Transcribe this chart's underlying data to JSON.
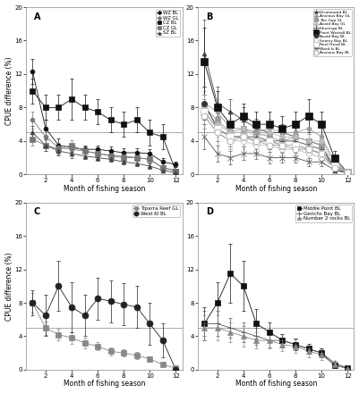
{
  "panel_A": {
    "title": "A",
    "series": [
      {
        "label": "WZ BL",
        "color": "#111111",
        "marker": "o",
        "markersize": 3.5,
        "mfc": "#111111",
        "x": [
          1,
          2,
          3,
          4,
          5,
          6,
          7,
          8,
          9,
          10,
          11,
          12
        ],
        "y": [
          12.3,
          5.5,
          3.5,
          3.2,
          3.0,
          3.0,
          2.8,
          2.6,
          2.6,
          2.5,
          1.5,
          1.2
        ],
        "yerr": [
          1.5,
          1.0,
          0.8,
          0.5,
          0.5,
          0.5,
          0.5,
          0.5,
          0.5,
          0.5,
          0.5,
          0.3
        ]
      },
      {
        "label": "WZ GL",
        "color": "#777777",
        "marker": "o",
        "markersize": 3.5,
        "mfc": "#777777",
        "x": [
          1,
          2,
          3,
          4,
          5,
          6,
          7,
          8,
          9,
          10,
          11,
          12
        ],
        "y": [
          6.5,
          4.5,
          3.2,
          3.0,
          2.8,
          2.5,
          2.3,
          2.2,
          2.0,
          1.8,
          0.8,
          0.5
        ],
        "yerr": [
          1.0,
          0.8,
          0.6,
          0.5,
          0.5,
          0.4,
          0.4,
          0.4,
          0.4,
          0.4,
          0.3,
          0.2
        ]
      },
      {
        "label": "CZ BL",
        "color": "#111111",
        "marker": "s",
        "markersize": 4.5,
        "mfc": "#111111",
        "x": [
          1,
          2,
          3,
          4,
          5,
          6,
          7,
          8,
          9,
          10,
          11,
          12
        ],
        "y": [
          10.0,
          8.0,
          8.0,
          9.0,
          8.0,
          7.5,
          6.5,
          6.0,
          6.5,
          5.0,
          4.5,
          0.4
        ],
        "yerr": [
          1.5,
          1.5,
          1.5,
          2.5,
          1.5,
          1.5,
          1.5,
          1.5,
          1.5,
          1.5,
          1.5,
          0.2
        ]
      },
      {
        "label": "CZ GL",
        "color": "#777777",
        "marker": "s",
        "markersize": 4.5,
        "mfc": "#777777",
        "x": [
          1,
          2,
          3,
          4,
          5,
          6,
          7,
          8,
          9,
          10,
          11,
          12
        ],
        "y": [
          4.2,
          3.5,
          3.0,
          3.5,
          2.8,
          2.5,
          2.2,
          2.0,
          2.0,
          1.8,
          0.8,
          0.4
        ],
        "yerr": [
          0.8,
          0.7,
          0.6,
          0.6,
          0.5,
          0.5,
          0.4,
          0.4,
          0.4,
          0.4,
          0.3,
          0.2
        ]
      },
      {
        "label": "SZ BL",
        "color": "#444444",
        "marker": "^",
        "markersize": 3.5,
        "mfc": "#444444",
        "x": [
          1,
          2,
          3,
          4,
          5,
          6,
          7,
          8,
          9,
          10,
          11,
          12
        ],
        "y": [
          5.0,
          3.5,
          2.8,
          2.5,
          2.2,
          2.0,
          1.8,
          1.5,
          1.3,
          1.0,
          0.5,
          0.2
        ],
        "yerr": [
          0.8,
          0.7,
          0.5,
          0.5,
          0.4,
          0.4,
          0.3,
          0.3,
          0.3,
          0.3,
          0.2,
          0.1
        ]
      }
    ],
    "ref_line": 5.0,
    "ylim": [
      0,
      20
    ],
    "yticks": [
      0,
      4,
      8,
      12,
      16,
      20
    ],
    "xticks": [
      2,
      4,
      6,
      8,
      10,
      12
    ],
    "xlabel": "Month of fishing season",
    "ylabel": "CPUE difference (%)"
  },
  "panel_B": {
    "title": "B",
    "series": [
      {
        "label": "Drummond BL",
        "color": "#444444",
        "marker": "^",
        "markersize": 3.5,
        "mfc": "#444444",
        "x": [
          1,
          2,
          3,
          4,
          5,
          6,
          7,
          8,
          9,
          10,
          11,
          12
        ],
        "y": [
          14.5,
          8.5,
          7.5,
          6.5,
          5.5,
          5.0,
          5.0,
          4.5,
          4.0,
          3.5,
          0.5,
          0.2
        ],
        "yerr": [
          4.0,
          2.0,
          1.5,
          1.5,
          1.2,
          1.0,
          1.0,
          0.8,
          0.8,
          0.7,
          0.3,
          0.1
        ]
      },
      {
        "label": "Anxious Bay GL",
        "color": "#999999",
        "marker": "o",
        "markersize": 3.5,
        "mfc": "#999999",
        "x": [
          1,
          2,
          3,
          4,
          5,
          6,
          7,
          8,
          9,
          10,
          11,
          12
        ],
        "y": [
          8.5,
          7.5,
          5.5,
          5.5,
          5.0,
          5.5,
          5.0,
          5.0,
          5.5,
          4.5,
          1.5,
          0.2
        ],
        "yerr": [
          2.0,
          1.5,
          1.2,
          1.2,
          1.0,
          1.2,
          1.0,
          1.0,
          1.2,
          1.0,
          0.5,
          0.1
        ]
      },
      {
        "label": "The Gap GL",
        "color": "#999999",
        "marker": "s",
        "markersize": 4.5,
        "mfc": "#999999",
        "x": [
          1,
          2,
          3,
          4,
          5,
          6,
          7,
          8,
          9,
          10,
          11,
          12
        ],
        "y": [
          8.0,
          6.5,
          5.0,
          5.5,
          5.0,
          4.5,
          4.0,
          4.5,
          4.0,
          3.5,
          1.2,
          0.2
        ],
        "yerr": [
          2.0,
          1.5,
          1.2,
          1.2,
          1.0,
          1.0,
          0.8,
          1.0,
          0.8,
          0.8,
          0.5,
          0.1
        ]
      },
      {
        "label": "Avoid Bay GL",
        "color": "#bbbbbb",
        "marker": "D",
        "markersize": 3.5,
        "mfc": "#bbbbbb",
        "x": [
          1,
          2,
          3,
          4,
          5,
          6,
          7,
          8,
          9,
          10,
          11,
          12
        ],
        "y": [
          8.0,
          6.0,
          5.0,
          5.5,
          4.5,
          5.0,
          4.5,
          4.5,
          4.0,
          4.0,
          1.5,
          0.2
        ],
        "yerr": [
          2.0,
          1.5,
          1.2,
          1.2,
          1.0,
          1.0,
          1.0,
          1.0,
          0.8,
          0.8,
          0.5,
          0.1
        ]
      },
      {
        "label": "Sheringa BL",
        "color": "#444444",
        "marker": "+",
        "markersize": 5,
        "mfc": "#444444",
        "x": [
          1,
          2,
          3,
          4,
          5,
          6,
          7,
          8,
          9,
          10,
          11,
          12
        ],
        "y": [
          7.5,
          5.5,
          4.5,
          4.5,
          4.5,
          4.0,
          4.0,
          4.0,
          3.5,
          3.0,
          1.0,
          0.2
        ],
        "yerr": [
          2.0,
          1.5,
          1.2,
          1.2,
          1.0,
          1.0,
          0.8,
          0.8,
          0.8,
          0.7,
          0.4,
          0.1
        ]
      },
      {
        "label": "Point Westall BL",
        "color": "#111111",
        "marker": "s",
        "markersize": 5.5,
        "mfc": "#111111",
        "x": [
          1,
          2,
          3,
          4,
          5,
          6,
          7,
          8,
          9,
          10,
          11,
          12
        ],
        "y": [
          13.5,
          8.0,
          6.0,
          7.0,
          6.0,
          6.0,
          5.5,
          6.0,
          7.0,
          6.0,
          2.0,
          0.2
        ],
        "yerr": [
          4.0,
          2.0,
          1.5,
          1.5,
          1.5,
          1.5,
          1.5,
          1.5,
          2.0,
          1.5,
          0.8,
          0.1
        ]
      },
      {
        "label": "Avoid Bay BL",
        "color": "#333333",
        "marker": "o",
        "markersize": 4.5,
        "mfc": "#333333",
        "x": [
          1,
          2,
          3,
          4,
          5,
          6,
          7,
          8,
          9,
          10,
          11,
          12
        ],
        "y": [
          8.5,
          5.5,
          4.5,
          4.5,
          4.0,
          4.0,
          3.5,
          3.5,
          3.0,
          2.5,
          0.8,
          0.2
        ],
        "yerr": [
          2.0,
          1.5,
          1.2,
          1.2,
          1.0,
          1.0,
          0.8,
          0.8,
          0.7,
          0.7,
          0.3,
          0.1
        ]
      },
      {
        "label": "Searcy Bay BL",
        "color": "#bbbbbb",
        "marker": "o",
        "markersize": 4.5,
        "mfc": "white",
        "x": [
          1,
          2,
          3,
          4,
          5,
          6,
          7,
          8,
          9,
          10,
          11,
          12
        ],
        "y": [
          7.0,
          5.0,
          4.0,
          4.0,
          3.5,
          3.5,
          3.0,
          3.0,
          2.5,
          2.0,
          0.8,
          0.2
        ],
        "yerr": [
          2.0,
          1.5,
          1.0,
          1.0,
          0.8,
          0.8,
          0.7,
          0.7,
          0.6,
          0.5,
          0.3,
          0.1
        ]
      },
      {
        "label": "Reef Head BL",
        "color": "#bbbbbb",
        "marker": "s",
        "markersize": 5.5,
        "mfc": "white",
        "x": [
          1,
          2,
          3,
          4,
          5,
          6,
          7,
          8,
          9,
          10,
          11,
          12
        ],
        "y": [
          7.5,
          5.5,
          4.5,
          4.5,
          4.0,
          4.0,
          3.5,
          3.5,
          3.0,
          2.5,
          1.0,
          0.2
        ],
        "yerr": [
          2.0,
          1.5,
          1.2,
          1.2,
          1.0,
          1.0,
          0.8,
          0.8,
          0.7,
          0.6,
          0.4,
          0.1
        ]
      },
      {
        "label": "Ward Is BL",
        "color": "#555555",
        "marker": "x",
        "markersize": 4.5,
        "mfc": "#555555",
        "x": [
          1,
          2,
          3,
          4,
          5,
          6,
          7,
          8,
          9,
          10,
          11,
          12
        ],
        "y": [
          4.5,
          2.5,
          2.0,
          2.5,
          2.5,
          2.0,
          2.0,
          2.0,
          1.5,
          1.5,
          0.5,
          0.2
        ],
        "yerr": [
          1.5,
          1.0,
          0.8,
          0.8,
          0.7,
          0.7,
          0.6,
          0.6,
          0.5,
          0.5,
          0.3,
          0.1
        ]
      },
      {
        "label": "Anxious Bay BL",
        "color": "#999999",
        "marker": "o",
        "markersize": 5,
        "mfc": "white",
        "mec_extra": true,
        "x": [
          1,
          2,
          3,
          4,
          5,
          6,
          7,
          8,
          9,
          10,
          11,
          12
        ],
        "y": [
          7.0,
          5.0,
          4.0,
          4.5,
          4.0,
          3.5,
          3.5,
          3.0,
          3.0,
          2.5,
          0.8,
          0.2
        ],
        "yerr": [
          2.0,
          1.5,
          1.0,
          1.2,
          1.0,
          0.8,
          0.8,
          0.7,
          0.7,
          0.6,
          0.3,
          0.1
        ]
      }
    ],
    "ref_line": 5.0,
    "ylim": [
      0,
      20
    ],
    "yticks": [
      0,
      4,
      8,
      12,
      16,
      20
    ],
    "xticks": [
      2,
      4,
      6,
      8,
      10,
      12
    ],
    "xlabel": "Month of fishing season",
    "ylabel": ""
  },
  "panel_C": {
    "title": "C",
    "series": [
      {
        "label": "Tiparra Reef GL",
        "color": "#888888",
        "marker": "s",
        "markersize": 4.0,
        "mfc": "#888888",
        "x": [
          1,
          2,
          3,
          4,
          5,
          6,
          7,
          8,
          9,
          10,
          11,
          12
        ],
        "y": [
          8.0,
          5.0,
          4.2,
          3.8,
          3.2,
          2.8,
          2.2,
          2.0,
          1.7,
          1.3,
          0.6,
          0.2
        ],
        "yerr": [
          1.2,
          0.8,
          0.7,
          0.7,
          0.6,
          0.5,
          0.5,
          0.4,
          0.4,
          0.3,
          0.2,
          0.1
        ]
      },
      {
        "label": "West KI BL",
        "color": "#222222",
        "marker": "o",
        "markersize": 5.0,
        "mfc": "#222222",
        "x": [
          1,
          2,
          3,
          4,
          5,
          6,
          7,
          8,
          9,
          10,
          11,
          12
        ],
        "y": [
          8.0,
          6.5,
          10.0,
          7.5,
          6.5,
          8.5,
          8.2,
          7.8,
          7.5,
          5.5,
          3.5,
          0.0
        ],
        "yerr": [
          1.5,
          2.5,
          3.0,
          3.0,
          2.5,
          2.5,
          2.5,
          2.5,
          2.5,
          2.5,
          2.0,
          0.3
        ]
      }
    ],
    "ref_line": 5.0,
    "ylim": [
      0,
      20
    ],
    "yticks": [
      0,
      4,
      8,
      12,
      16,
      20
    ],
    "xticks": [
      2,
      4,
      6,
      8,
      10,
      12
    ],
    "xlabel": "Month of fishing season",
    "ylabel": "CPUE difference (%)"
  },
  "panel_D": {
    "title": "D",
    "series": [
      {
        "label": "Middle Point BL",
        "color": "#111111",
        "marker": "s",
        "markersize": 4.5,
        "mfc": "#111111",
        "x": [
          1,
          2,
          3,
          4,
          5,
          6,
          7,
          8,
          9,
          10,
          11,
          12
        ],
        "y": [
          5.5,
          8.0,
          11.5,
          10.0,
          5.5,
          4.5,
          3.5,
          3.0,
          2.5,
          2.0,
          0.5,
          0.2
        ],
        "yerr": [
          2.0,
          2.5,
          3.5,
          3.0,
          1.8,
          1.2,
          0.8,
          0.7,
          0.6,
          0.5,
          0.3,
          0.1
        ]
      },
      {
        "label": "Gerichs Bay BL",
        "color": "#555555",
        "marker": "+",
        "markersize": 5,
        "mfc": "#555555",
        "x": [
          1,
          2,
          3,
          4,
          5,
          6,
          7,
          8,
          9,
          10,
          11,
          12
        ],
        "y": [
          5.5,
          5.5,
          5.0,
          4.5,
          4.0,
          3.5,
          3.5,
          3.0,
          2.5,
          2.0,
          0.8,
          0.2
        ],
        "yerr": [
          1.5,
          1.5,
          1.2,
          1.2,
          1.0,
          0.8,
          0.8,
          0.7,
          0.6,
          0.5,
          0.3,
          0.1
        ]
      },
      {
        "label": "Number 2 rocks BL",
        "color": "#888888",
        "marker": "^",
        "markersize": 4.0,
        "mfc": "#888888",
        "x": [
          1,
          2,
          3,
          4,
          5,
          6,
          7,
          8,
          9,
          10,
          11,
          12
        ],
        "y": [
          5.0,
          5.0,
          4.5,
          4.0,
          3.5,
          3.5,
          3.0,
          2.8,
          2.2,
          1.8,
          0.6,
          0.1
        ],
        "yerr": [
          1.5,
          1.5,
          1.2,
          1.2,
          1.0,
          1.0,
          0.8,
          0.8,
          0.7,
          0.6,
          0.3,
          0.1
        ]
      }
    ],
    "ref_line": 5.0,
    "ylim": [
      0,
      20
    ],
    "yticks": [
      0,
      4,
      8,
      12,
      16,
      20
    ],
    "xticks": [
      2,
      4,
      6,
      8,
      10,
      12
    ],
    "xlabel": "Month of fishing season",
    "ylabel": ""
  },
  "fig_background": "#ffffff",
  "ref_line_color": "#aaaaaa",
  "fontsize": 5.5,
  "tick_fontsize": 5
}
